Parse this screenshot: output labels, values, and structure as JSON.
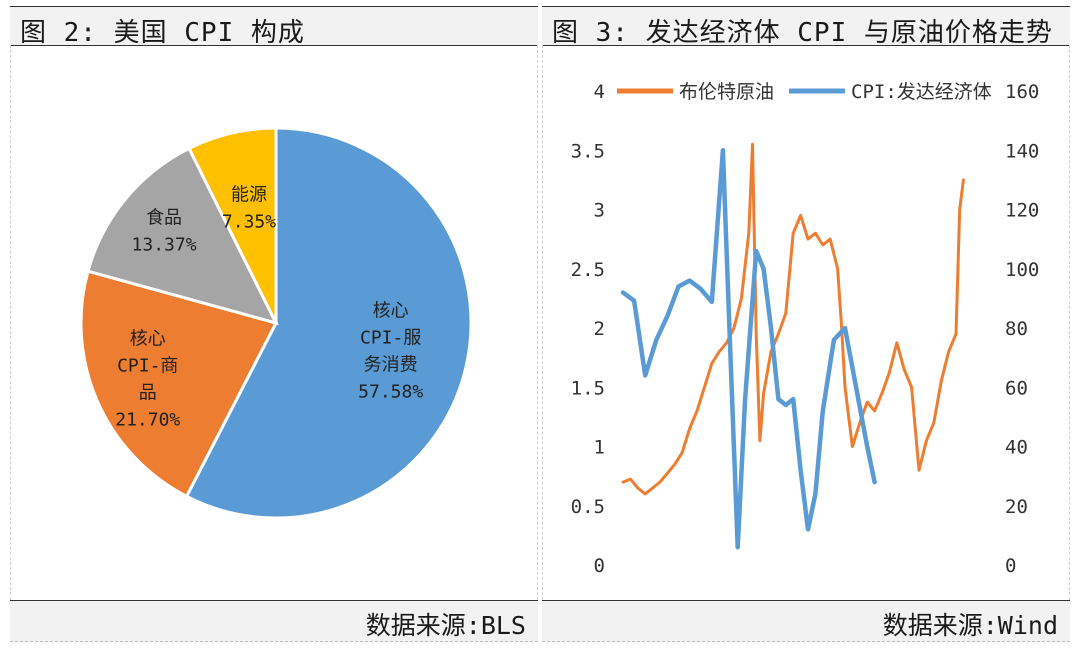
{
  "left": {
    "title": "图 2: 美国 CPI 构成",
    "source": "数据来源:BLS"
  },
  "right": {
    "title": "图 3: 发达经济体 CPI 与原油价格走势",
    "source": "数据来源:Wind"
  },
  "colors": {
    "blue": "#5b9bd5",
    "orange": "#ed7d31",
    "gray": "#a5a5a5",
    "yellow": "#ffc000"
  },
  "chart_data": [
    {
      "type": "pie",
      "title": "美国 CPI 构成",
      "slices": [
        {
          "label_lines": [
            "核心",
            "CPI-服",
            "务消费"
          ],
          "value": 57.58,
          "value_label": "57.58%",
          "color": "#5b9bd5"
        },
        {
          "label_lines": [
            "核心",
            "CPI-商",
            "品"
          ],
          "value": 21.7,
          "value_label": "21.70%",
          "color": "#ed7d31"
        },
        {
          "label_lines": [
            "食品"
          ],
          "value": 13.37,
          "value_label": "13.37%",
          "color": "#a5a5a5"
        },
        {
          "label_lines": [
            "能源"
          ],
          "value": 7.35,
          "value_label": "7.35%",
          "color": "#ffc000"
        }
      ]
    },
    {
      "type": "line",
      "title": "发达经济体 CPI 与原油价格走势",
      "x": {
        "range": [
          0,
          100
        ],
        "note": "time axis, no tick labels shown"
      },
      "y_left": {
        "range": [
          0,
          4
        ],
        "ticks": [
          "0",
          "0.5",
          "1",
          "1.5",
          "2",
          "2.5",
          "3",
          "3.5",
          "4"
        ]
      },
      "y_right": {
        "range": [
          0,
          160
        ],
        "ticks": [
          "0",
          "20",
          "40",
          "60",
          "80",
          "100",
          "120",
          "140",
          "160"
        ]
      },
      "series": [
        {
          "name": "布伦特原油",
          "axis": "right",
          "color": "#ed7d31",
          "points": [
            [
              0,
              28
            ],
            [
              2,
              29
            ],
            [
              4,
              26
            ],
            [
              6,
              24
            ],
            [
              8,
              26
            ],
            [
              10,
              28
            ],
            [
              12,
              31
            ],
            [
              14,
              34
            ],
            [
              16,
              38
            ],
            [
              18,
              46
            ],
            [
              20,
              52
            ],
            [
              22,
              60
            ],
            [
              24,
              68
            ],
            [
              26,
              72
            ],
            [
              28,
              75
            ],
            [
              30,
              80
            ],
            [
              32,
              90
            ],
            [
              34,
              112
            ],
            [
              35,
              142
            ],
            [
              36,
              78
            ],
            [
              37,
              42
            ],
            [
              38,
              58
            ],
            [
              40,
              72
            ],
            [
              42,
              78
            ],
            [
              44,
              85
            ],
            [
              46,
              112
            ],
            [
              48,
              118
            ],
            [
              50,
              110
            ],
            [
              52,
              112
            ],
            [
              54,
              108
            ],
            [
              56,
              110
            ],
            [
              58,
              100
            ],
            [
              59,
              82
            ],
            [
              60,
              60
            ],
            [
              61,
              50
            ],
            [
              62,
              40
            ],
            [
              64,
              48
            ],
            [
              66,
              55
            ],
            [
              68,
              52
            ],
            [
              70,
              58
            ],
            [
              72,
              65
            ],
            [
              74,
              75
            ],
            [
              76,
              66
            ],
            [
              78,
              60
            ],
            [
              80,
              32
            ],
            [
              82,
              42
            ],
            [
              84,
              48
            ],
            [
              86,
              62
            ],
            [
              88,
              72
            ],
            [
              90,
              78
            ],
            [
              91,
              120
            ],
            [
              92,
              130
            ]
          ]
        },
        {
          "name": "CPI:发达经济体",
          "axis": "left",
          "color": "#5b9bd5",
          "points": [
            [
              0,
              2.3
            ],
            [
              3,
              2.23
            ],
            [
              6,
              1.6
            ],
            [
              9,
              1.9
            ],
            [
              12,
              2.1
            ],
            [
              15,
              2.35
            ],
            [
              18,
              2.4
            ],
            [
              21,
              2.33
            ],
            [
              24,
              2.22
            ],
            [
              27,
              3.5
            ],
            [
              29,
              1.8
            ],
            [
              31,
              0.15
            ],
            [
              33,
              1.4
            ],
            [
              36,
              2.65
            ],
            [
              38,
              2.5
            ],
            [
              40,
              2.0
            ],
            [
              42,
              1.4
            ],
            [
              44,
              1.35
            ],
            [
              46,
              1.4
            ],
            [
              48,
              0.8
            ],
            [
              50,
              0.3
            ],
            [
              52,
              0.6
            ],
            [
              54,
              1.3
            ],
            [
              57,
              1.9
            ],
            [
              60,
              2.0
            ],
            [
              63,
              1.5
            ],
            [
              66,
              1.0
            ],
            [
              68,
              0.7
            ]
          ]
        }
      ],
      "legend": {
        "position": "top",
        "entries": [
          "布伦特原油",
          "CPI:发达经济体"
        ]
      }
    }
  ]
}
